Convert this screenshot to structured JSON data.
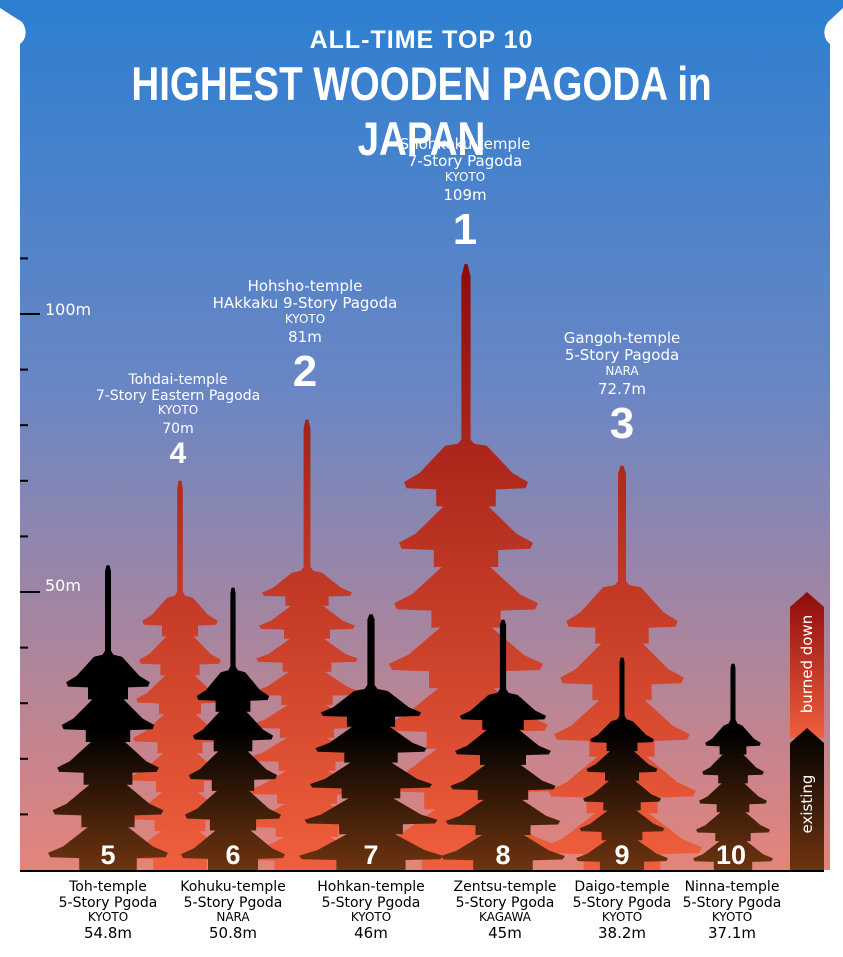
{
  "title": {
    "top": "ALL-TIME TOP 10",
    "main": "HIGHEST WOODEN PAGODA in JAPAN"
  },
  "colors": {
    "sky_top": "#2d7fd1",
    "sky_mid": "#6a86c4",
    "sky_bottom": "#e4847b",
    "burned_top": "#8c0c0c",
    "burned_bottom": "#f05f3c",
    "existing_top": "#000000",
    "existing_bottom": "#6e3410"
  },
  "legend": {
    "burned": "burned down",
    "existing": "existing"
  },
  "chart_data": {
    "type": "bar",
    "ylabel": "",
    "ylim": [
      0,
      112
    ],
    "yticks": [
      {
        "value": 100,
        "label": "100m"
      },
      {
        "value": 50,
        "label": "50m"
      }
    ],
    "pagodas": [
      {
        "rank": "1",
        "name": "Shohkoku-temple",
        "pagoda": "7-Story Pagoda",
        "prefecture": "KYOTO",
        "height_label": "109m",
        "height": 109,
        "stories": 7,
        "status": "burned"
      },
      {
        "rank": "2",
        "name": "Hohsho-temple",
        "pagoda": "HAkkaku 9-Story Pagoda",
        "prefecture": "KYOTO",
        "height_label": "81m",
        "height": 81,
        "stories": 9,
        "status": "burned"
      },
      {
        "rank": "3",
        "name": "Gangoh-temple",
        "pagoda": "5-Story Pagoda",
        "prefecture": "NARA",
        "height_label": "72.7m",
        "height": 72.7,
        "stories": 5,
        "status": "burned"
      },
      {
        "rank": "4",
        "name": "Tohdai-temple",
        "pagoda": "7-Story Eastern Pagoda",
        "prefecture": "KYOTO",
        "height_label": "70m",
        "height": 70,
        "stories": 7,
        "status": "burned"
      },
      {
        "rank": "5",
        "name": "Toh-temple",
        "pagoda": "5-Story Pgoda",
        "prefecture": "KYOTO",
        "height_label": "54.8m",
        "height": 54.8,
        "stories": 5,
        "status": "existing"
      },
      {
        "rank": "6",
        "name": "Kohuku-temple",
        "pagoda": "5-Story Pgoda",
        "prefecture": "NARA",
        "height_label": "50.8m",
        "height": 50.8,
        "stories": 5,
        "status": "existing"
      },
      {
        "rank": "7",
        "name": "Hohkan-temple",
        "pagoda": "5-Story Pgoda",
        "prefecture": "KYOTO",
        "height_label": "46m",
        "height": 46,
        "stories": 5,
        "status": "existing"
      },
      {
        "rank": "8",
        "name": "Zentsu-temple",
        "pagoda": "5-Story Pgoda",
        "prefecture": "KAGAWA",
        "height_label": "45m",
        "height": 45,
        "stories": 5,
        "status": "existing"
      },
      {
        "rank": "9",
        "name": "Daigo-temple",
        "pagoda": "5-Story Pgoda",
        "prefecture": "KYOTO",
        "height_label": "38.2m",
        "height": 38.2,
        "stories": 5,
        "status": "existing"
      },
      {
        "rank": "10",
        "name": "Ninna-temple",
        "pagoda": "5-Story Pgoda",
        "prefecture": "KYOTO",
        "height_label": "37.1m",
        "height": 37.1,
        "stories": 5,
        "status": "existing"
      }
    ]
  }
}
